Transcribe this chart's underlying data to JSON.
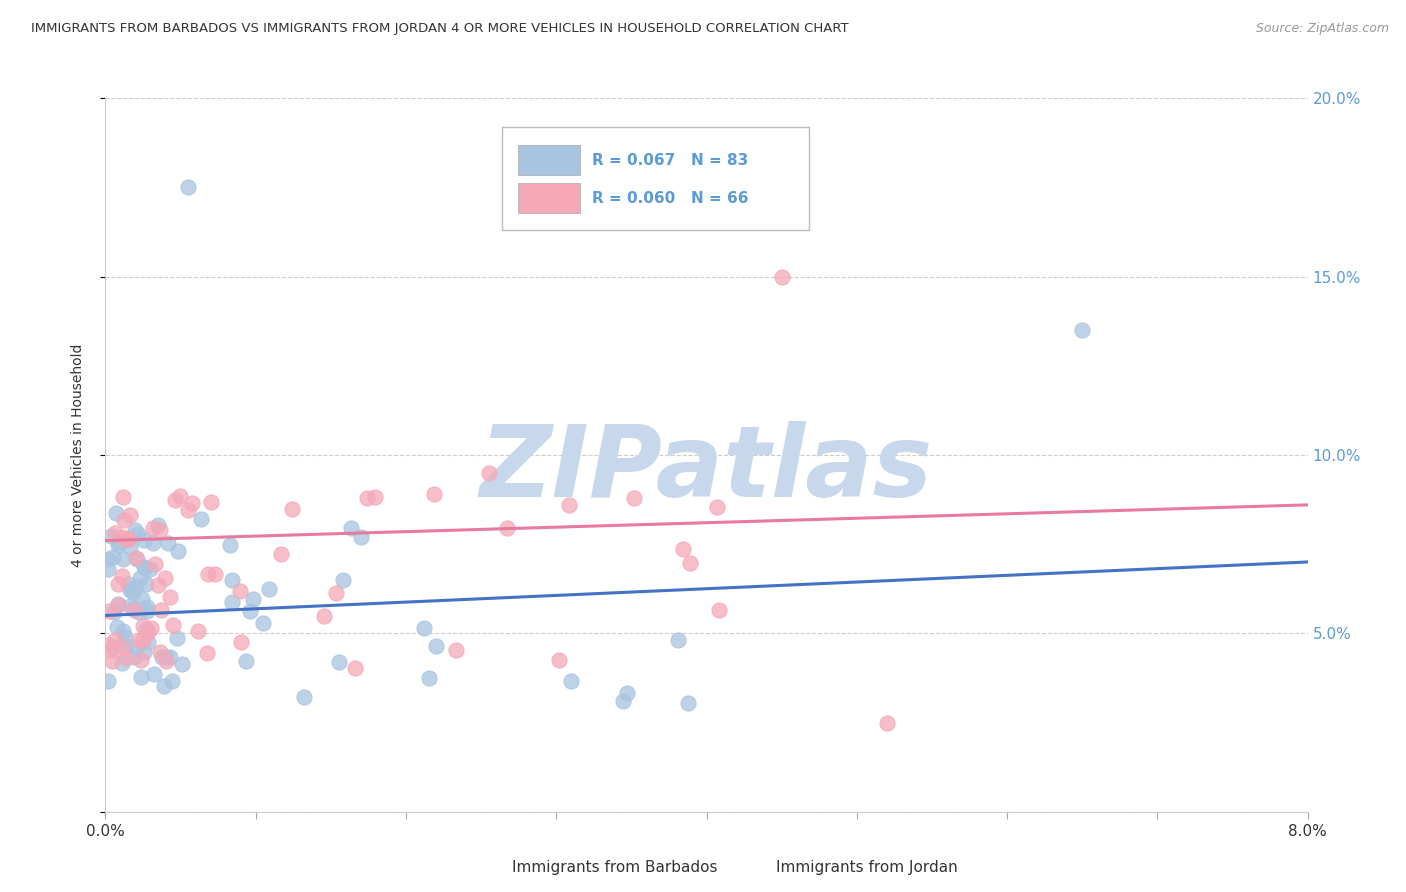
{
  "title": "IMMIGRANTS FROM BARBADOS VS IMMIGRANTS FROM JORDAN 4 OR MORE VEHICLES IN HOUSEHOLD CORRELATION CHART",
  "source": "Source: ZipAtlas.com",
  "ylabel": "4 or more Vehicles in Household",
  "xlim": [
    0.0,
    8.0
  ],
  "ylim": [
    0.0,
    20.0
  ],
  "barbados_color": "#a8c4e0",
  "jordan_color": "#f4a8b8",
  "barbados_line_color": "#4472c4",
  "jordan_line_color": "#e87aa0",
  "barbados_R": 0.067,
  "barbados_N": 83,
  "jordan_R": 0.06,
  "jordan_N": 66,
  "barbados_trend_y0": 5.5,
  "barbados_trend_y1": 7.0,
  "jordan_trend_y0": 7.6,
  "jordan_trend_y1": 8.6,
  "watermark_text": "ZIPatlas",
  "watermark_color": "#c8d8ec",
  "grid_color": "#cccccc",
  "tick_label_color": "#5b9bd5",
  "right_ytick_labels": [
    "",
    "5.0%",
    "10.0%",
    "15.0%",
    "20.0%"
  ]
}
